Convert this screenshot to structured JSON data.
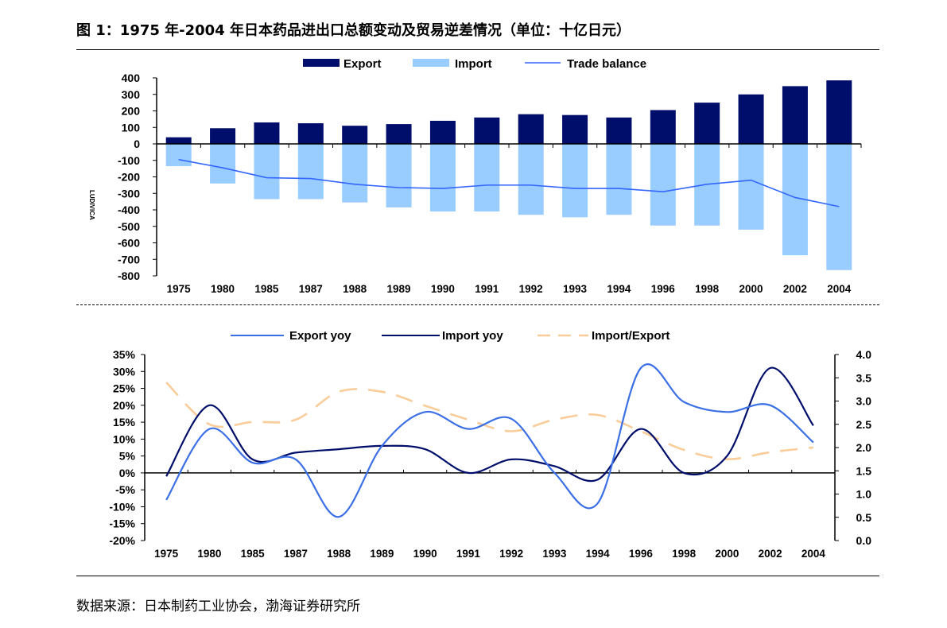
{
  "header": {
    "title": "图 1：1975 年-2004 年日本药品进出口总额变动及贸易逆差情况（单位：十亿日元）"
  },
  "footer": {
    "source": "数据来源：日本制药工业协会，渤海证券研究所"
  },
  "colors": {
    "export": "#000e6b",
    "import": "#99ccff",
    "trade": "#3366ff",
    "export_yoy": "#3b6fe6",
    "import_yoy": "#000e6b",
    "ratio": "#f9cc99"
  },
  "chart_data": [
    {
      "type": "bar",
      "categories": [
        "1975",
        "1980",
        "1985",
        "1987",
        "1988",
        "1989",
        "1990",
        "1991",
        "1992",
        "1993",
        "1994",
        "1996",
        "1998",
        "2000",
        "2002",
        "2004"
      ],
      "series": [
        {
          "name": "Export",
          "values": [
            40,
            95,
            130,
            125,
            110,
            120,
            140,
            160,
            180,
            175,
            160,
            205,
            250,
            300,
            350,
            385
          ]
        },
        {
          "name": "Import",
          "values": [
            -135,
            -240,
            -335,
            -335,
            -355,
            -385,
            -410,
            -410,
            -430,
            -445,
            -430,
            -495,
            -495,
            -520,
            -675,
            -765
          ]
        },
        {
          "name": "Trade balance",
          "values": [
            -95,
            -145,
            -205,
            -210,
            -245,
            -265,
            -270,
            -250,
            -250,
            -270,
            -270,
            -290,
            -245,
            -220,
            -325,
            -380
          ]
        }
      ],
      "ylim": [
        -800,
        400
      ],
      "yticks": [
        "400",
        "300",
        "200",
        "100",
        "0",
        "-100",
        "-200",
        "-300",
        "-400",
        "-500",
        "-600",
        "-700",
        "-800"
      ],
      "ylabel": "",
      "axis_logo_text": "LUDIVICA",
      "legend": "top"
    },
    {
      "type": "line",
      "categories": [
        "1975",
        "1980",
        "1985",
        "1987",
        "1988",
        "1989",
        "1990",
        "1991",
        "1992",
        "1993",
        "1994",
        "1996",
        "1998",
        "2000",
        "2002",
        "2004"
      ],
      "series": [
        {
          "name": "Export yoy",
          "axis": "left",
          "values": [
            -8,
            13,
            3,
            4,
            -13,
            8,
            18,
            13,
            16,
            0,
            -9,
            31,
            21,
            18,
            20,
            9
          ]
        },
        {
          "name": "Import yoy",
          "axis": "left",
          "values": [
            -1,
            20,
            4,
            6,
            7,
            8,
            7,
            0,
            4,
            2,
            -2,
            13,
            0,
            5,
            31,
            14
          ]
        },
        {
          "name": "Import/Export",
          "axis": "right",
          "values": [
            3.4,
            2.5,
            2.55,
            2.6,
            3.2,
            3.2,
            2.9,
            2.6,
            2.35,
            2.6,
            2.7,
            2.35,
            1.95,
            1.75,
            1.9,
            2.0
          ]
        }
      ],
      "ylim_left": [
        -20,
        35
      ],
      "yticks_left": [
        "35%",
        "30%",
        "25%",
        "20%",
        "15%",
        "10%",
        "5%",
        "0%",
        "-5%",
        "-10%",
        "-15%",
        "-20%"
      ],
      "ylim_right": [
        0,
        4
      ],
      "yticks_right": [
        "4.0",
        "3.5",
        "3.0",
        "2.5",
        "2.0",
        "1.5",
        "1.0",
        "0.5",
        "0.0"
      ],
      "legend": "top"
    }
  ]
}
